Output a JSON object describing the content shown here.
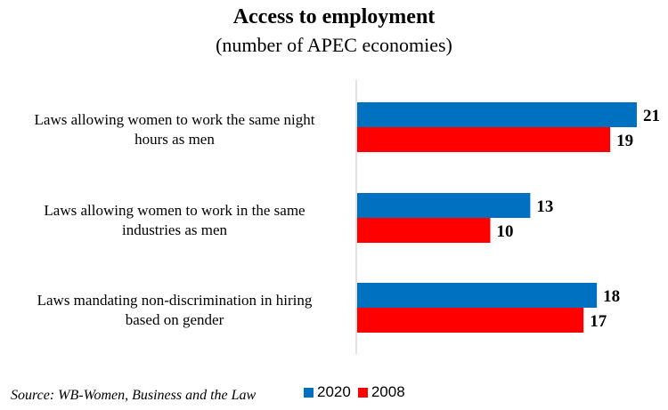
{
  "chart_data": {
    "type": "bar",
    "orientation": "horizontal",
    "title": "Access to employment",
    "subtitle": "(number of APEC economies)",
    "categories": [
      [
        "Laws allowing women to work the same night",
        "hours as men"
      ],
      [
        "Laws allowing women to work in the same",
        "industries as men"
      ],
      [
        "Laws mandating non-discrimination in hiring",
        "based on gender"
      ]
    ],
    "series": [
      {
        "name": "2020",
        "color": "#0070C0",
        "values": [
          21,
          13,
          18
        ]
      },
      {
        "name": "2008",
        "color": "#FF0000",
        "values": [
          19,
          10,
          17
        ]
      }
    ],
    "xlim": [
      0,
      21
    ],
    "grid": false,
    "legend_position": "bottom"
  },
  "source": "Source: WB-Women, Business and the Law"
}
